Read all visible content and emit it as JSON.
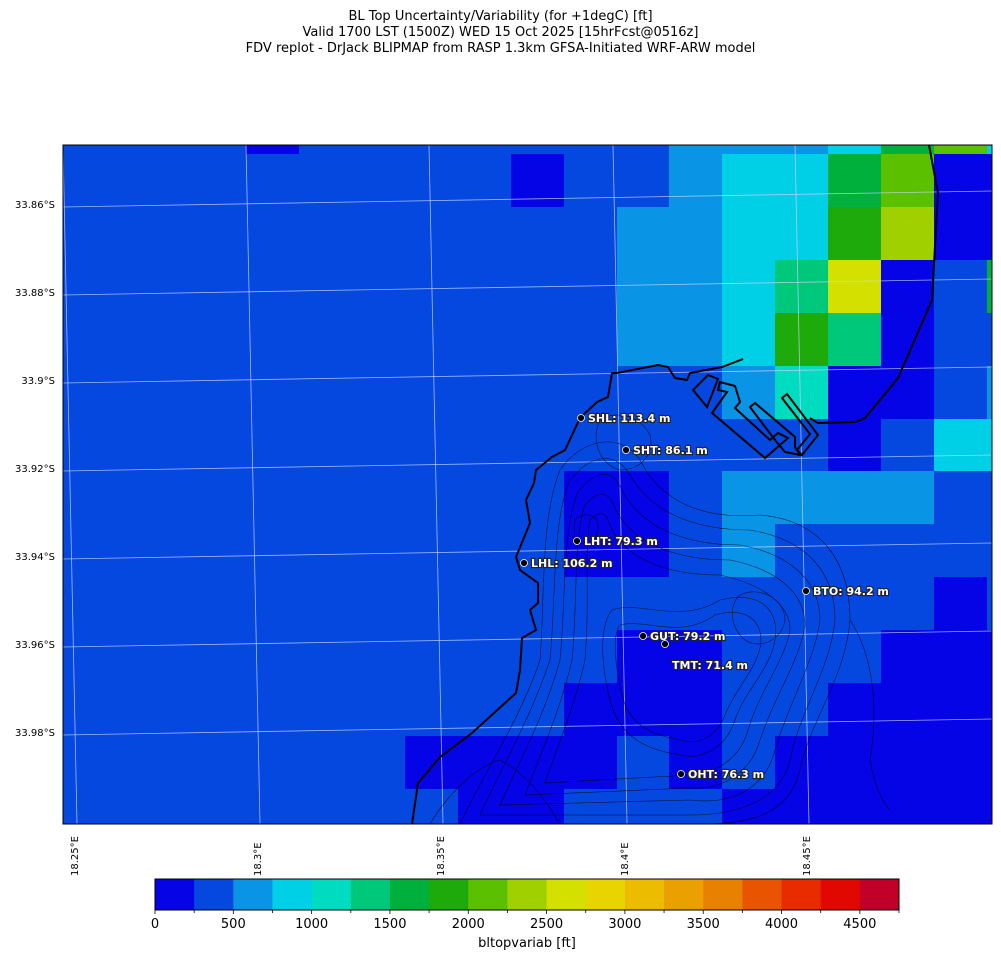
{
  "title": {
    "line1": "BL Top Uncertainty/Variability (for +1degC) [ft]",
    "line2": "Valid 1700 LST (1500Z) WED 15 Oct 2025 [15hrFcst@0516z]",
    "line3": "FDV replot - DrJack BLIPMAP from RASP 1.3km GFSA-Initiated WRF-ARW model"
  },
  "axes": {
    "lat_labels": [
      "33.86°S",
      "33.88°S",
      "33.9°S",
      "33.92°S",
      "33.94°S",
      "33.96°S",
      "33.98°S"
    ],
    "lon_labels": [
      "18.25°E",
      "18.3°E",
      "18.35°E",
      "18.4°E",
      "18.45°E"
    ]
  },
  "stations": [
    {
      "name": "SHL",
      "label": "SHL: 113.4 m"
    },
    {
      "name": "SHT",
      "label": "SHT: 86.1 m"
    },
    {
      "name": "LHT",
      "label": "LHT: 79.3 m"
    },
    {
      "name": "LHL",
      "label": "LHL: 106.2 m"
    },
    {
      "name": "BTO",
      "label": "BTO: 94.2 m"
    },
    {
      "name": "GUT",
      "label": "GUT: 79.2 m"
    },
    {
      "name": "TMT",
      "label": "TMT: 71.4 m"
    },
    {
      "name": "OHT",
      "label": "OHT: 76.3 m"
    }
  ],
  "colorbar": {
    "title": "bltopvariab [ft]",
    "tick_labels": [
      "0",
      "500",
      "1000",
      "1500",
      "2000",
      "2500",
      "3000",
      "3500",
      "4000",
      "4500"
    ],
    "colors": [
      "#0404e6",
      "#0548e0",
      "#0a94e6",
      "#00d0e6",
      "#00dcc0",
      "#00c87a",
      "#00b03c",
      "#1eaa0a",
      "#5ac000",
      "#a0d000",
      "#d4e000",
      "#e8d400",
      "#ecbc00",
      "#eaa000",
      "#e88000",
      "#e85400",
      "#e82c00",
      "#e00800",
      "#c00028"
    ]
  },
  "chart_data": {
    "type": "heatmap",
    "title": "BL Top Uncertainty/Variability (for +1degC) [ft]",
    "variable": "bltopvariab [ft]",
    "levels_step": 250,
    "range": [
      0,
      4750
    ],
    "lon_range": [
      18.245,
      18.5
    ],
    "lat_range": [
      -33.848,
      -34.0
    ],
    "cell_level_index_rows": [
      "1111011111112223683",
      "1111111110112336800",
      "1111111111122337900",
      "111111111112235A016",
      "1111111111122375011",
      "1111111111111240012",
      "1111111111111110133",
      "1111111111001222211",
      "1111111111001211111",
      "1111111111111111101",
      "1111111111100111000",
      "1111111111000110000",
      "1111111000010100000",
      "1111111100111000000"
    ]
  }
}
